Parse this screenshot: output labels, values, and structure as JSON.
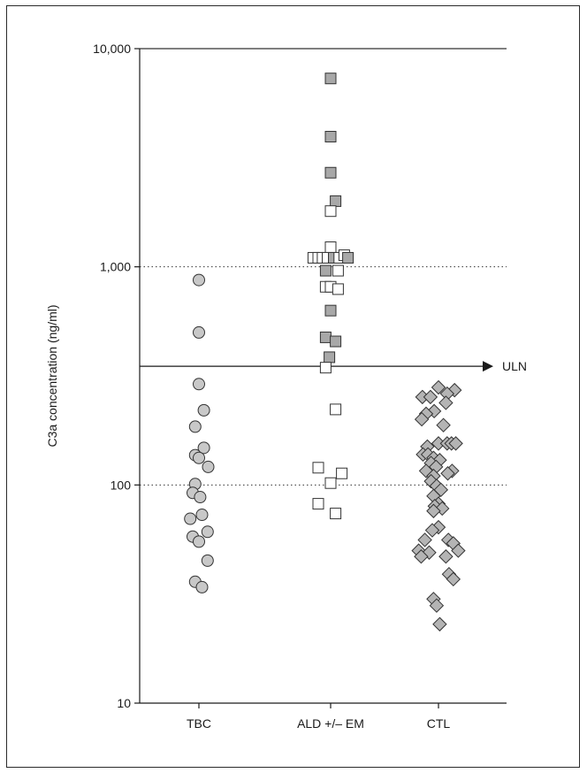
{
  "chart_data": {
    "type": "scatter",
    "ylabel": "C3a concentration (ng/ml)",
    "yscale": "log",
    "ylim": [
      10,
      10000
    ],
    "yticks": [
      {
        "value": 10,
        "label": "10"
      },
      {
        "value": 100,
        "label": "100"
      },
      {
        "value": 1000,
        "label": "1,000"
      },
      {
        "value": 10000,
        "label": "10,000"
      }
    ],
    "gridlines": [
      100,
      1000,
      10000
    ],
    "categories": [
      "TBC",
      "ALD +/– EM",
      "CTL"
    ],
    "reference_line": {
      "label": "ULN",
      "value": 350
    },
    "groups": [
      {
        "category": "TBC",
        "marker": "circle",
        "fill": "#c8c8c8",
        "points": [
          {
            "offset": 0.0,
            "value": 870
          },
          {
            "offset": 0.0,
            "value": 500
          },
          {
            "offset": 0.0,
            "value": 290
          },
          {
            "offset": 0.08,
            "value": 220
          },
          {
            "offset": -0.06,
            "value": 185
          },
          {
            "offset": 0.08,
            "value": 148
          },
          {
            "offset": -0.06,
            "value": 137
          },
          {
            "offset": 0.0,
            "value": 133
          },
          {
            "offset": 0.15,
            "value": 121
          },
          {
            "offset": -0.06,
            "value": 101
          },
          {
            "offset": -0.1,
            "value": 92
          },
          {
            "offset": 0.02,
            "value": 88
          },
          {
            "offset": 0.05,
            "value": 73
          },
          {
            "offset": -0.14,
            "value": 70
          },
          {
            "offset": 0.14,
            "value": 61
          },
          {
            "offset": -0.1,
            "value": 58
          },
          {
            "offset": 0.0,
            "value": 55
          },
          {
            "offset": 0.14,
            "value": 45
          },
          {
            "offset": -0.06,
            "value": 36
          },
          {
            "offset": 0.05,
            "value": 34
          }
        ]
      },
      {
        "category": "ALD +/– EM",
        "marker": "square",
        "points": [
          {
            "offset": 0.0,
            "value": 7300,
            "fill": "#a8a8a8"
          },
          {
            "offset": 0.0,
            "value": 3950,
            "fill": "#a8a8a8"
          },
          {
            "offset": 0.0,
            "value": 2700,
            "fill": "#a8a8a8"
          },
          {
            "offset": 0.08,
            "value": 2000,
            "fill": "#a8a8a8"
          },
          {
            "offset": 0.0,
            "value": 1800,
            "fill": "#ffffff"
          },
          {
            "offset": 0.0,
            "value": 1230,
            "fill": "#ffffff"
          },
          {
            "offset": -0.28,
            "value": 1100,
            "fill": "#ffffff"
          },
          {
            "offset": -0.2,
            "value": 1100,
            "fill": "#ffffff"
          },
          {
            "offset": -0.13,
            "value": 1100,
            "fill": "#ffffff"
          },
          {
            "offset": -0.05,
            "value": 1100,
            "fill": "#ffffff"
          },
          {
            "offset": 0.05,
            "value": 1100,
            "fill": "#a8a8a8"
          },
          {
            "offset": 0.14,
            "value": 1100,
            "fill": "#ffffff"
          },
          {
            "offset": 0.22,
            "value": 1130,
            "fill": "#ffffff"
          },
          {
            "offset": 0.28,
            "value": 1100,
            "fill": "#a8a8a8"
          },
          {
            "offset": -0.08,
            "value": 960,
            "fill": "#a8a8a8"
          },
          {
            "offset": 0.12,
            "value": 960,
            "fill": "#ffffff"
          },
          {
            "offset": -0.08,
            "value": 810,
            "fill": "#ffffff"
          },
          {
            "offset": 0.0,
            "value": 810,
            "fill": "#ffffff"
          },
          {
            "offset": 0.12,
            "value": 790,
            "fill": "#ffffff"
          },
          {
            "offset": 0.0,
            "value": 630,
            "fill": "#a8a8a8"
          },
          {
            "offset": -0.08,
            "value": 475,
            "fill": "#a8a8a8"
          },
          {
            "offset": 0.08,
            "value": 455,
            "fill": "#a8a8a8"
          },
          {
            "offset": -0.02,
            "value": 385,
            "fill": "#a8a8a8"
          },
          {
            "offset": -0.08,
            "value": 345,
            "fill": "#ffffff"
          },
          {
            "offset": 0.08,
            "value": 222,
            "fill": "#ffffff"
          },
          {
            "offset": -0.2,
            "value": 120,
            "fill": "#ffffff"
          },
          {
            "offset": 0.18,
            "value": 113,
            "fill": "#ffffff"
          },
          {
            "offset": 0.0,
            "value": 102,
            "fill": "#ffffff"
          },
          {
            "offset": -0.2,
            "value": 82,
            "fill": "#ffffff"
          },
          {
            "offset": 0.08,
            "value": 74,
            "fill": "#ffffff"
          }
        ]
      },
      {
        "category": "CTL",
        "marker": "diamond",
        "fill": "#b4b4b4",
        "points": [
          {
            "offset": 0.0,
            "value": 280
          },
          {
            "offset": 0.26,
            "value": 272
          },
          {
            "offset": 0.14,
            "value": 262
          },
          {
            "offset": -0.26,
            "value": 253
          },
          {
            "offset": -0.13,
            "value": 253
          },
          {
            "offset": 0.12,
            "value": 238
          },
          {
            "offset": -0.07,
            "value": 218
          },
          {
            "offset": -0.2,
            "value": 212
          },
          {
            "offset": -0.27,
            "value": 200
          },
          {
            "offset": 0.08,
            "value": 188
          },
          {
            "offset": 0.0,
            "value": 155
          },
          {
            "offset": 0.14,
            "value": 155
          },
          {
            "offset": 0.21,
            "value": 155
          },
          {
            "offset": 0.28,
            "value": 155
          },
          {
            "offset": -0.18,
            "value": 150
          },
          {
            "offset": -0.25,
            "value": 138
          },
          {
            "offset": -0.17,
            "value": 138
          },
          {
            "offset": -0.08,
            "value": 133
          },
          {
            "offset": 0.02,
            "value": 130
          },
          {
            "offset": -0.12,
            "value": 126
          },
          {
            "offset": -0.04,
            "value": 121
          },
          {
            "offset": -0.2,
            "value": 116
          },
          {
            "offset": 0.22,
            "value": 116
          },
          {
            "offset": 0.15,
            "value": 113
          },
          {
            "offset": -0.08,
            "value": 110
          },
          {
            "offset": -0.12,
            "value": 104
          },
          {
            "offset": -0.03,
            "value": 99
          },
          {
            "offset": 0.04,
            "value": 95
          },
          {
            "offset": -0.08,
            "value": 89
          },
          {
            "offset": 0.0,
            "value": 82
          },
          {
            "offset": -0.06,
            "value": 80
          },
          {
            "offset": 0.06,
            "value": 78
          },
          {
            "offset": -0.08,
            "value": 76
          },
          {
            "offset": 0.0,
            "value": 64
          },
          {
            "offset": -0.1,
            "value": 62
          },
          {
            "offset": 0.16,
            "value": 56
          },
          {
            "offset": -0.22,
            "value": 56
          },
          {
            "offset": 0.24,
            "value": 54
          },
          {
            "offset": 0.32,
            "value": 50
          },
          {
            "offset": -0.32,
            "value": 50
          },
          {
            "offset": -0.15,
            "value": 49
          },
          {
            "offset": -0.28,
            "value": 47
          },
          {
            "offset": 0.12,
            "value": 47
          },
          {
            "offset": 0.17,
            "value": 39
          },
          {
            "offset": 0.24,
            "value": 37
          },
          {
            "offset": -0.08,
            "value": 30
          },
          {
            "offset": -0.03,
            "value": 28
          },
          {
            "offset": 0.02,
            "value": 23
          }
        ]
      }
    ]
  }
}
